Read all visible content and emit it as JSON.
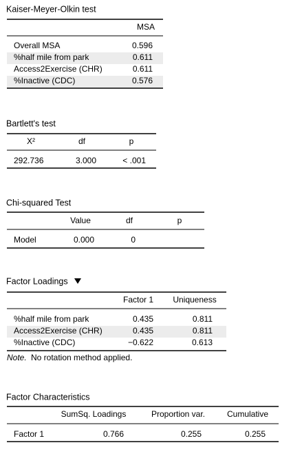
{
  "tables": [
    {
      "title": "Kaiser-Meyer-Olkin test",
      "columns": [
        "MSA"
      ],
      "rows": [
        [
          "Overall MSA",
          "0.596"
        ],
        [
          "%half mile from park",
          "0.611"
        ],
        [
          "Access2Exercise (CHR)",
          "0.611"
        ],
        [
          "%Inactive (CDC)",
          "0.576"
        ]
      ]
    },
    {
      "title": "Bartlett's test",
      "columns": [
        "Χ²",
        "df",
        "p"
      ],
      "rows": [
        [
          "292.736",
          "3.000",
          "< .001"
        ]
      ]
    },
    {
      "title": "Chi-squared Test",
      "columns": [
        "Value",
        "df",
        "p"
      ],
      "rows": [
        [
          "Model",
          "0.000",
          "0"
        ]
      ]
    },
    {
      "title": "Factor Loadings",
      "columns": [
        "Factor 1",
        "Uniqueness"
      ],
      "rows": [
        [
          "%half mile from park",
          "0.435",
          "0.811"
        ],
        [
          "Access2Exercise (CHR)",
          "0.435",
          "0.811"
        ],
        [
          "%Inactive (CDC)",
          "−0.622",
          "0.613"
        ]
      ],
      "note_label": "Note.",
      "note": "No rotation method applied."
    },
    {
      "title": "Factor Characteristics",
      "columns": [
        "SumSq. Loadings",
        "Proportion var.",
        "Cumulative"
      ],
      "rows": [
        [
          "Factor 1",
          "0.766",
          "0.255",
          "0.255"
        ]
      ]
    }
  ]
}
